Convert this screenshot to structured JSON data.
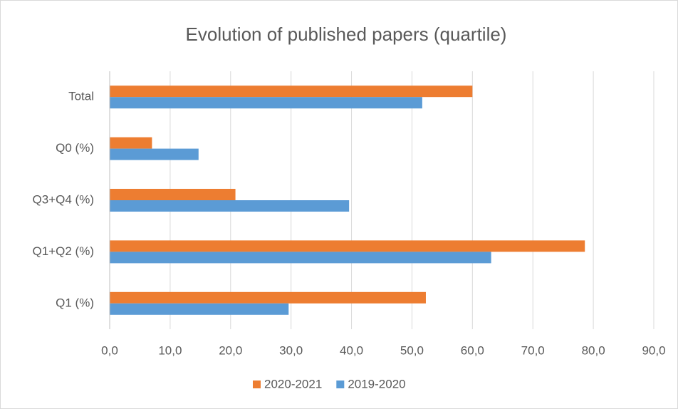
{
  "chart_data": {
    "type": "hbar",
    "title": "Evolution of published papers (quartile)",
    "categories": [
      "Q1 (%)",
      "Q1+Q2 (%)",
      "Q3+Q4 (%)",
      "Q0 (%)",
      "Total"
    ],
    "series": [
      {
        "name": "2020-2021",
        "color": "#ed7d31",
        "values": [
          52.3,
          78.6,
          20.8,
          7.0,
          60.0
        ]
      },
      {
        "name": "2019-2020",
        "color": "#5b9bd5",
        "values": [
          29.6,
          63.1,
          39.6,
          14.7,
          51.7
        ]
      }
    ],
    "xlim": [
      0,
      90
    ],
    "xticks": [
      {
        "value": 0,
        "label": "0,0"
      },
      {
        "value": 10,
        "label": "10,0"
      },
      {
        "value": 20,
        "label": "20,0"
      },
      {
        "value": 30,
        "label": "30,0"
      },
      {
        "value": 40,
        "label": "40,0"
      },
      {
        "value": 50,
        "label": "50,0"
      },
      {
        "value": 60,
        "label": "60,0"
      },
      {
        "value": 70,
        "label": "70,0"
      },
      {
        "value": 80,
        "label": "80,0"
      },
      {
        "value": 90,
        "label": "90,0"
      }
    ],
    "grid": true,
    "legend": "bottom"
  }
}
